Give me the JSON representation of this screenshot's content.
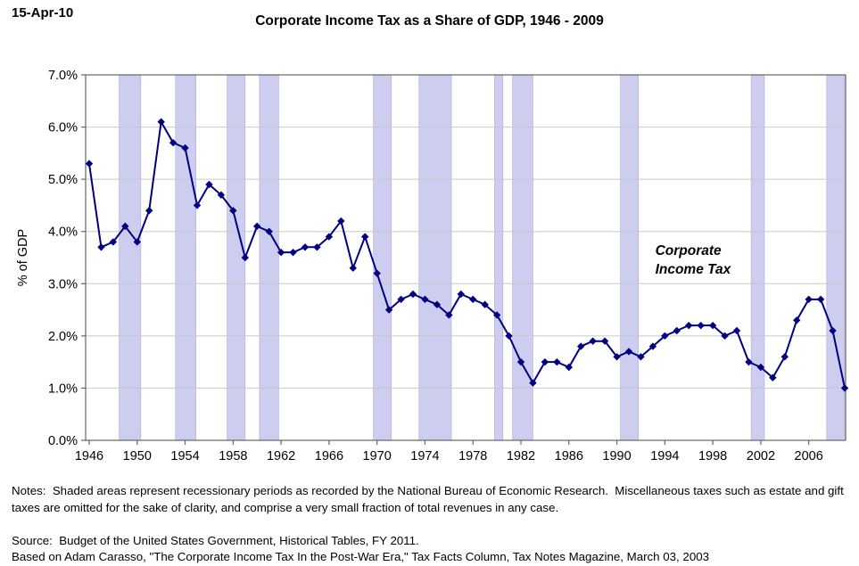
{
  "page": {
    "date_label": "15-Apr-10",
    "title": "Corporate Income Tax as a Share of GDP, 1946 - 2009",
    "notes": "Notes:  Shaded areas represent recessionary periods as recorded by the National Bureau of Economic Research.  Miscellaneous taxes such as estate and gift taxes are omitted for the sake of clarity, and comprise a very small fraction of total revenues in any case.",
    "source_line1": "Source:  Budget of the United States Government, Historical Tables, FY 2011.",
    "source_line2": "Based on Adam Carasso, \"The Corporate Income Tax In the Post-War Era,\" Tax Facts Column, Tax Notes Magazine, March 03, 2003"
  },
  "chart_data": {
    "type": "line",
    "title": "Corporate Income Tax as a Share of GDP, 1946 - 2009",
    "xlabel": "",
    "ylabel": "% of GDP",
    "xlim": [
      1946,
      2009
    ],
    "ylim": [
      0,
      7
    ],
    "grid": true,
    "legend": false,
    "marker": "diamond",
    "yticks": [
      0,
      1,
      2,
      3,
      4,
      5,
      6,
      7
    ],
    "ytick_labels": [
      "0.0%",
      "1.0%",
      "2.0%",
      "3.0%",
      "4.0%",
      "5.0%",
      "6.0%",
      "7.0%"
    ],
    "xticks": [
      1946,
      1950,
      1954,
      1958,
      1962,
      1966,
      1970,
      1974,
      1978,
      1982,
      1986,
      1990,
      1994,
      1998,
      2002,
      2006
    ],
    "x": [
      1946,
      1947,
      1948,
      1949,
      1950,
      1951,
      1952,
      1953,
      1954,
      1955,
      1956,
      1957,
      1958,
      1959,
      1960,
      1961,
      1962,
      1963,
      1964,
      1965,
      1966,
      1967,
      1968,
      1969,
      1970,
      1971,
      1972,
      1973,
      1974,
      1975,
      1976,
      1977,
      1978,
      1979,
      1980,
      1981,
      1982,
      1983,
      1984,
      1985,
      1986,
      1987,
      1988,
      1989,
      1990,
      1991,
      1992,
      1993,
      1994,
      1995,
      1996,
      1997,
      1998,
      1999,
      2000,
      2001,
      2002,
      2003,
      2004,
      2005,
      2006,
      2007,
      2008,
      2009
    ],
    "series": [
      {
        "name": "Corporate Income Tax",
        "color": "#000080",
        "values": [
          5.3,
          3.7,
          3.8,
          4.1,
          3.8,
          4.4,
          6.1,
          5.7,
          5.6,
          4.5,
          4.9,
          4.7,
          4.4,
          3.5,
          4.1,
          4.0,
          3.6,
          3.6,
          3.7,
          3.7,
          3.9,
          4.2,
          3.3,
          3.9,
          3.2,
          2.5,
          2.7,
          2.8,
          2.7,
          2.6,
          2.4,
          2.8,
          2.7,
          2.6,
          2.4,
          2.0,
          1.5,
          1.1,
          1.5,
          1.5,
          1.4,
          1.8,
          1.9,
          1.9,
          1.6,
          1.7,
          1.6,
          1.8,
          2.0,
          2.1,
          2.2,
          2.2,
          2.2,
          2.0,
          2.1,
          1.5,
          1.4,
          1.2,
          1.6,
          2.3,
          2.7,
          2.7,
          2.1,
          1.0
        ]
      }
    ],
    "annotation": {
      "lines": [
        "Corporate",
        "Income Tax"
      ],
      "x": 1993.2,
      "y": 3.55
    },
    "recession_bands": [
      [
        1948.5,
        1950.3
      ],
      [
        1953.2,
        1954.9
      ],
      [
        1957.5,
        1959.0
      ],
      [
        1960.2,
        1961.8
      ],
      [
        1969.7,
        1971.2
      ],
      [
        1973.5,
        1976.2
      ],
      [
        1979.8,
        1980.5
      ],
      [
        1981.3,
        1983.0
      ],
      [
        1990.3,
        1991.8
      ],
      [
        2001.2,
        2002.3
      ],
      [
        2007.5,
        2009.0
      ]
    ],
    "colors": {
      "band": "#CDCDEF",
      "band_border": "#ABABD6",
      "grid": "#C8C8C8",
      "axis": "#666666"
    }
  }
}
